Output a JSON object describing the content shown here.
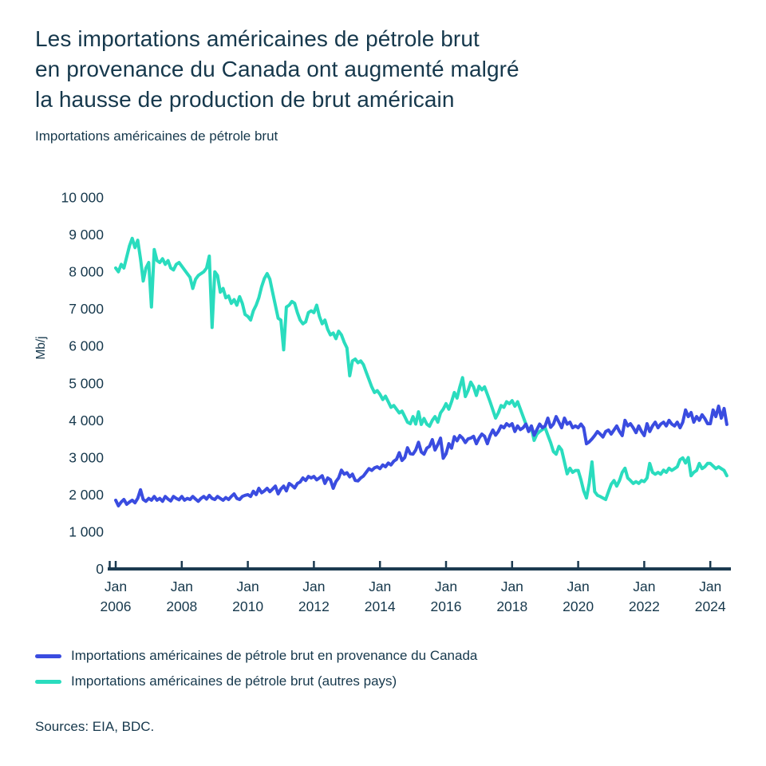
{
  "chart_data": {
    "type": "line",
    "title": "Les importations américaines de pétrole brut en provenance du Canada ont augmenté malgré la hausse de production de brut américain",
    "title_lines": [
      "Les importations américaines de pétrole brut",
      "en provenance du Canada ont augmenté malgré",
      "la hausse de production de brut américain"
    ],
    "subtitle": "Importations américaines de pétrole brut",
    "ylabel": "Mb/j",
    "xlabel": "",
    "ylim": [
      0,
      10000
    ],
    "grid": false,
    "legend_position": "bottom-left",
    "x_start": "2006-01",
    "x_frequency": "monthly",
    "x_tick_month": "Jan",
    "x_tick_years": [
      "2006",
      "2008",
      "2010",
      "2012",
      "2014",
      "2016",
      "2018",
      "2020",
      "2022",
      "2024"
    ],
    "y_tick_values": [
      0,
      1000,
      2000,
      3000,
      4000,
      5000,
      6000,
      7000,
      8000,
      9000,
      10000
    ],
    "y_tick_labels": [
      "0",
      "1 000",
      "2 000",
      "3 000",
      "4 000",
      "5 000",
      "6 000",
      "7 000",
      "8 000",
      "9 000",
      "10 000"
    ],
    "series": [
      {
        "name": "Importations américaines de pétrole brut en provenance du Canada",
        "color": "#3a4ce0",
        "values": [
          1850,
          1700,
          1800,
          1870,
          1740,
          1800,
          1850,
          1780,
          1900,
          2130,
          1870,
          1820,
          1900,
          1850,
          1950,
          1850,
          1900,
          1820,
          1950,
          1880,
          1830,
          1950,
          1900,
          1860,
          1950,
          1850,
          1900,
          1870,
          1950,
          1880,
          1820,
          1900,
          1950,
          1880,
          1980,
          1900,
          1870,
          1950,
          1900,
          1850,
          1920,
          1870,
          1950,
          2020,
          1900,
          1870,
          1950,
          1980,
          2000,
          1950,
          2090,
          2000,
          2170,
          2050,
          2100,
          2170,
          2080,
          2150,
          2230,
          2020,
          2150,
          2230,
          2100,
          2300,
          2250,
          2180,
          2300,
          2340,
          2450,
          2380,
          2490,
          2450,
          2490,
          2400,
          2450,
          2510,
          2300,
          2450,
          2400,
          2170,
          2350,
          2450,
          2660,
          2550,
          2590,
          2480,
          2550,
          2380,
          2370,
          2450,
          2500,
          2600,
          2700,
          2650,
          2720,
          2750,
          2700,
          2800,
          2750,
          2850,
          2800,
          2900,
          2950,
          3130,
          2920,
          3000,
          3260,
          3100,
          3090,
          3200,
          3410,
          3150,
          3090,
          3250,
          3300,
          3480,
          3200,
          3350,
          3520,
          2980,
          3100,
          3370,
          3250,
          3560,
          3450,
          3590,
          3520,
          3400,
          3500,
          3520,
          3570,
          3370,
          3520,
          3630,
          3570,
          3370,
          3590,
          3740,
          3600,
          3700,
          3850,
          3800,
          3910,
          3850,
          3910,
          3700,
          3850,
          3750,
          3800,
          3900,
          3700,
          3850,
          3600,
          3750,
          3900,
          3800,
          3850,
          4060,
          3810,
          3900,
          4100,
          3950,
          3800,
          4060,
          3900,
          3950,
          3800,
          3850,
          3800,
          3900,
          3800,
          3370,
          3420,
          3500,
          3590,
          3700,
          3630,
          3550,
          3700,
          3740,
          3630,
          3740,
          3850,
          3700,
          3590,
          4000,
          3850,
          3910,
          3800,
          3670,
          3850,
          3700,
          3590,
          3910,
          3700,
          3850,
          3950,
          3800,
          3900,
          3950,
          3850,
          4000,
          3900,
          3850,
          3950,
          3800,
          3950,
          4280,
          4100,
          4210,
          3950,
          4100,
          4000,
          4150,
          4050,
          3910,
          3910,
          4280,
          4100,
          4380,
          4060,
          4320,
          3890
        ]
      },
      {
        "name": "Importations américaines de pétrole brut (autres pays)",
        "color": "#2adcbe",
        "values": [
          8100,
          8000,
          8200,
          8100,
          8400,
          8700,
          8900,
          8650,
          8850,
          8350,
          7750,
          8100,
          8250,
          7050,
          8600,
          8300,
          8250,
          8350,
          8200,
          8300,
          8100,
          8050,
          8200,
          8250,
          8150,
          8050,
          7950,
          7850,
          7550,
          7800,
          7900,
          7950,
          8000,
          8100,
          8420,
          6500,
          8000,
          7900,
          7450,
          7550,
          7300,
          7350,
          7150,
          7250,
          7100,
          7330,
          7150,
          6850,
          6800,
          6700,
          6950,
          7100,
          7300,
          7600,
          7820,
          7950,
          7800,
          7450,
          7100,
          6750,
          6700,
          5900,
          7050,
          7100,
          7200,
          7150,
          6900,
          6700,
          6600,
          6650,
          6900,
          6950,
          6900,
          7100,
          6800,
          6600,
          6700,
          6450,
          6300,
          6350,
          6200,
          6400,
          6300,
          6100,
          5950,
          5200,
          5600,
          5650,
          5550,
          5600,
          5500,
          5300,
          5100,
          4900,
          4750,
          4800,
          4700,
          4560,
          4650,
          4500,
          4350,
          4400,
          4300,
          4200,
          4250,
          4100,
          3950,
          3910,
          4100,
          3900,
          4230,
          3890,
          4050,
          3900,
          3840,
          4000,
          4100,
          3950,
          4200,
          4300,
          4450,
          4300,
          4500,
          4750,
          4600,
          4900,
          5150,
          4640,
          4800,
          5030,
          4900,
          4670,
          4920,
          4820,
          4900,
          4700,
          4500,
          4280,
          4060,
          4200,
          4400,
          4350,
          4500,
          4450,
          4530,
          4380,
          4500,
          4300,
          4100,
          3900,
          3740,
          3800,
          3460,
          3630,
          3700,
          3750,
          3800,
          3600,
          3400,
          3160,
          3090,
          3300,
          3200,
          2880,
          2560,
          2710,
          2600,
          2650,
          2650,
          2400,
          2100,
          1910,
          2300,
          2880,
          2080,
          1980,
          1950,
          1910,
          1870,
          2080,
          2280,
          2380,
          2230,
          2380,
          2600,
          2710,
          2450,
          2380,
          2300,
          2350,
          2300,
          2380,
          2350,
          2450,
          2840,
          2600,
          2550,
          2600,
          2550,
          2660,
          2600,
          2710,
          2650,
          2700,
          2750,
          2940,
          2990,
          2850,
          3000,
          2510,
          2600,
          2650,
          2840,
          2700,
          2750,
          2840,
          2840,
          2770,
          2700,
          2750,
          2700,
          2650,
          2510
        ]
      }
    ]
  },
  "sources": "Sources: EIA, BDC.",
  "colors": {
    "text": "#16384c",
    "axis": "#1b3a50",
    "background": "#ffffff"
  }
}
